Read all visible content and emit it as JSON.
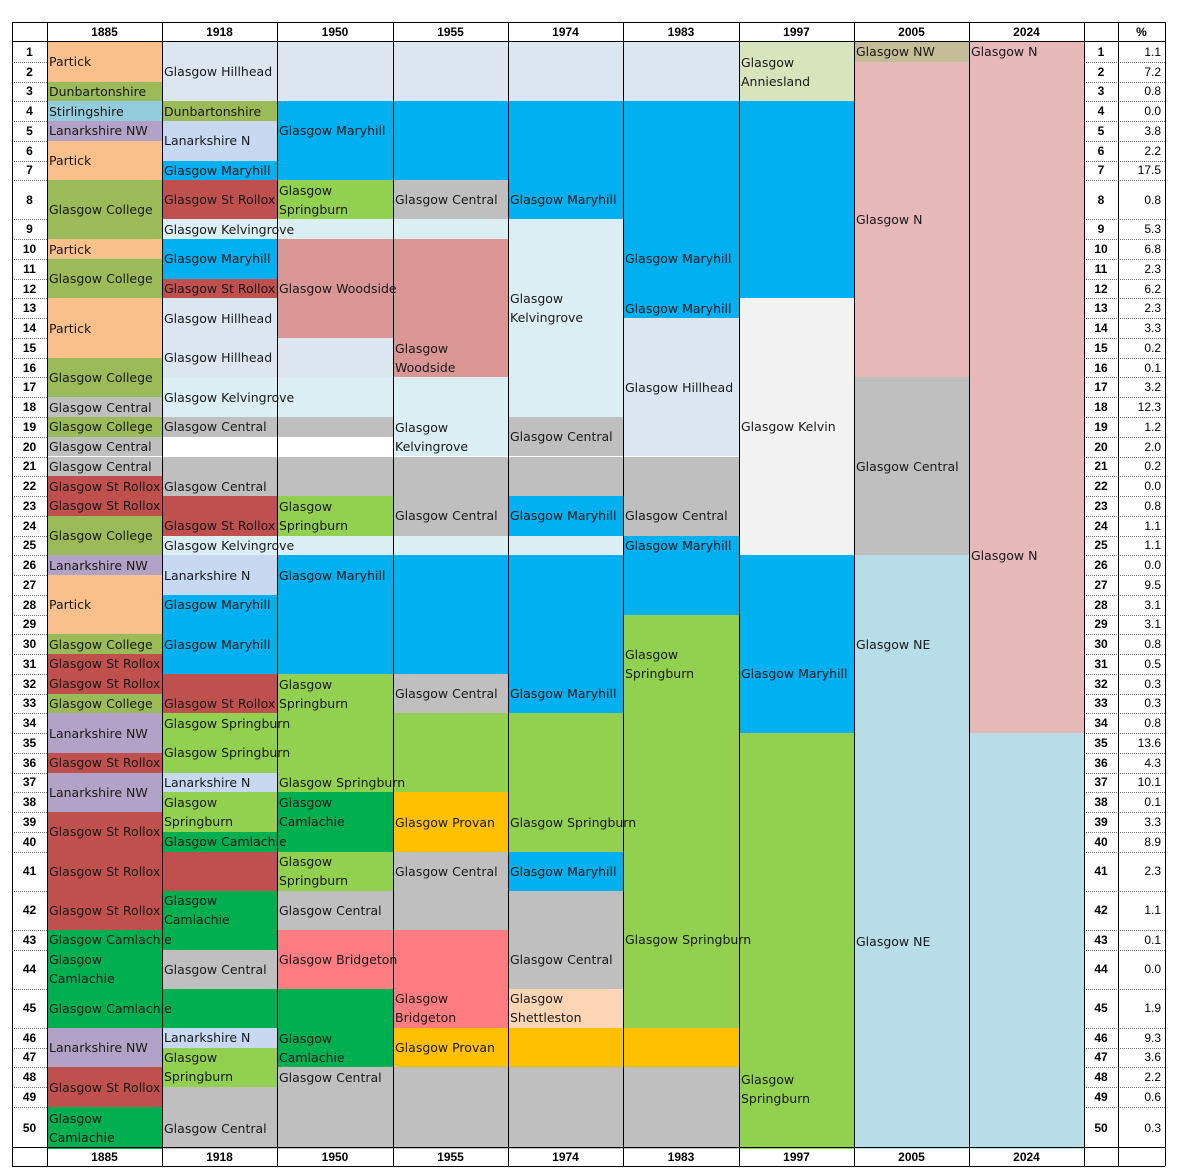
{
  "years": [
    "1885",
    "1918",
    "1950",
    "1955",
    "1974",
    "1983",
    "1997",
    "2005",
    "2024"
  ],
  "pct_header": "%",
  "rows": [
    {
      "n": "1",
      "pct": "1.1"
    },
    {
      "n": "2",
      "pct": "7.2"
    },
    {
      "n": "3",
      "pct": "0.8"
    },
    {
      "n": "4",
      "pct": "0.0"
    },
    {
      "n": "5",
      "pct": "3.8"
    },
    {
      "n": "6",
      "pct": "2.2"
    },
    {
      "n": "7",
      "pct": "17.5"
    },
    {
      "n": "8",
      "pct": "0.8"
    },
    {
      "n": "9",
      "pct": "5.3"
    },
    {
      "n": "10",
      "pct": "6.8"
    },
    {
      "n": "11",
      "pct": "2.3"
    },
    {
      "n": "12",
      "pct": "6.2"
    },
    {
      "n": "13",
      "pct": "2.3"
    },
    {
      "n": "14",
      "pct": "3.3"
    },
    {
      "n": "15",
      "pct": "0.2"
    },
    {
      "n": "16",
      "pct": "0.1"
    },
    {
      "n": "17",
      "pct": "3.2"
    },
    {
      "n": "18",
      "pct": "12.3"
    },
    {
      "n": "19",
      "pct": "1.2"
    },
    {
      "n": "20",
      "pct": "2.0"
    },
    {
      "n": "21",
      "pct": "0.2"
    },
    {
      "n": "22",
      "pct": "0.0"
    },
    {
      "n": "23",
      "pct": "0.8"
    },
    {
      "n": "24",
      "pct": "1.1"
    },
    {
      "n": "25",
      "pct": "1.1"
    },
    {
      "n": "26",
      "pct": "0.0"
    },
    {
      "n": "27",
      "pct": "9.5"
    },
    {
      "n": "28",
      "pct": "3.1"
    },
    {
      "n": "29",
      "pct": "3.1"
    },
    {
      "n": "30",
      "pct": "0.8"
    },
    {
      "n": "31",
      "pct": "0.5"
    },
    {
      "n": "32",
      "pct": "0.3"
    },
    {
      "n": "33",
      "pct": "0.3"
    },
    {
      "n": "34",
      "pct": "0.8"
    },
    {
      "n": "35",
      "pct": "13.6"
    },
    {
      "n": "36",
      "pct": "4.3"
    },
    {
      "n": "37",
      "pct": "10.1"
    },
    {
      "n": "38",
      "pct": "0.1"
    },
    {
      "n": "39",
      "pct": "3.3"
    },
    {
      "n": "40",
      "pct": "8.9"
    },
    {
      "n": "41",
      "pct": "2.3"
    },
    {
      "n": "42",
      "pct": "1.1"
    },
    {
      "n": "43",
      "pct": "0.1"
    },
    {
      "n": "44",
      "pct": "0.0"
    },
    {
      "n": "45",
      "pct": "1.9"
    },
    {
      "n": "46",
      "pct": "9.3"
    },
    {
      "n": "47",
      "pct": "3.6"
    },
    {
      "n": "48",
      "pct": "2.2"
    },
    {
      "n": "49",
      "pct": "0.6"
    },
    {
      "n": "50",
      "pct": "0.3"
    }
  ],
  "colors": {
    "partick": "#f9c08c",
    "green_light": "#9bbb59",
    "stirling": "#93cddd",
    "lanark": "#b3a2c7",
    "lanark_n": "#c6d9f1",
    "hillhead": "#dce6f1",
    "kelvingrove": "#daeef3",
    "maryhill": "#00b0f0",
    "rollox": "#c0504d",
    "springburn": "#92d050",
    "central": "#bfbfbf",
    "woodside": "#da9694",
    "camlachie": "#00b050",
    "provan": "#ffc000",
    "bridgeton": "#ff7c80",
    "shettleston": "#fcd5b4",
    "kelvin": "#f2f2f2",
    "anniesland": "#d8e4bc",
    "nw2005": "#c4bd97",
    "glasgow_n": "#e6b8b7",
    "glasgow_ne": "#b7dde8"
  },
  "cells": [
    {
      "c1": 0,
      "c2": 1,
      "r1": 1,
      "r2": 2,
      "text": "Partick",
      "color": "partick"
    },
    {
      "c1": 0,
      "c2": 1,
      "r1": 3,
      "r2": 3,
      "text": "Dunbartonshire",
      "color": "green_light"
    },
    {
      "c1": 0,
      "c2": 1,
      "r1": 4,
      "r2": 4,
      "text": "Stirlingshire",
      "color": "stirling"
    },
    {
      "c1": 0,
      "c2": 1,
      "r1": 5,
      "r2": 5,
      "text": "Lanarkshire NW",
      "color": "lanark"
    },
    {
      "c1": 0,
      "c2": 1,
      "r1": 6,
      "r2": 7,
      "text": "Partick",
      "color": "partick"
    },
    {
      "c1": 0,
      "c2": 1,
      "r1": 8,
      "r2": 9,
      "text": "Glasgow College",
      "color": "green_light"
    },
    {
      "c1": 0,
      "c2": 1,
      "r1": 10,
      "r2": 10,
      "text": "Partick",
      "color": "partick"
    },
    {
      "c1": 0,
      "c2": 1,
      "r1": 11,
      "r2": 12,
      "text": "Glasgow College",
      "color": "green_light"
    },
    {
      "c1": 0,
      "c2": 1,
      "r1": 13,
      "r2": 15,
      "text": "Partick",
      "color": "partick"
    },
    {
      "c1": 0,
      "c2": 1,
      "r1": 16,
      "r2": 17,
      "text": "Glasgow College",
      "color": "green_light"
    },
    {
      "c1": 0,
      "c2": 1,
      "r1": 18,
      "r2": 18,
      "text": "Glasgow Central",
      "color": "central"
    },
    {
      "c1": 0,
      "c2": 1,
      "r1": 19,
      "r2": 19,
      "text": "Glasgow College",
      "color": "green_light"
    },
    {
      "c1": 0,
      "c2": 1,
      "r1": 20,
      "r2": 20,
      "text": "Glasgow Central",
      "color": "central"
    },
    {
      "c1": 0,
      "c2": 1,
      "r1": 22,
      "r2": 22,
      "text": "Glasgow St Rollox",
      "color": "rollox"
    },
    {
      "c1": 0,
      "c2": 1,
      "r1": 24,
      "r2": 25,
      "text": "Glasgow College",
      "color": "green_light"
    },
    {
      "c1": 0,
      "c2": 1,
      "r1": 26,
      "r2": 26,
      "text": "Lanarkshire NW",
      "color": "lanark"
    },
    {
      "c1": 0,
      "c2": 1,
      "r1": 27,
      "r2": 29,
      "text": "Partick",
      "color": "partick"
    },
    {
      "c1": 0,
      "c2": 1,
      "r1": 30,
      "r2": 30,
      "text": "Glasgow College",
      "color": "green_light"
    },
    {
      "c1": 0,
      "c2": 1,
      "r1": 31,
      "r2": 31,
      "text": "Glasgow St Rollox",
      "color": "rollox"
    },
    {
      "c1": 0,
      "c2": 1,
      "r1": 33,
      "r2": 33,
      "text": "Glasgow College",
      "color": "green_light"
    },
    {
      "c1": 0,
      "c2": 1,
      "r1": 34,
      "r2": 35,
      "text": "Lanarkshire NW",
      "color": "lanark"
    },
    {
      "c1": 0,
      "c2": 1,
      "r1": 36,
      "r2": 36,
      "text": "Glasgow St Rollox",
      "color": "rollox"
    },
    {
      "c1": 0,
      "c2": 1,
      "r1": 37,
      "r2": 38,
      "text": "Lanarkshire NW",
      "color": "lanark"
    },
    {
      "c1": 0,
      "c2": 1,
      "r1": 39,
      "r2": 40,
      "text": "Glasgow St Rollox",
      "color": "rollox"
    },
    {
      "c1": 0,
      "c2": 1,
      "r1": 42,
      "r2": 42,
      "text": "Glasgow St Rollox",
      "color": "rollox"
    },
    {
      "c1": 0,
      "c2": 1,
      "r1": 44,
      "r2": 44,
      "text": "Glasgow\nCamlachie",
      "color": "camlachie"
    },
    {
      "c1": 0,
      "c2": 1,
      "r1": 46,
      "r2": 47,
      "text": "Lanarkshire NW",
      "color": "lanark"
    },
    {
      "c1": 0,
      "c2": 1,
      "r1": 48,
      "r2": 49,
      "text": "Glasgow St Rollox",
      "color": "rollox"
    },
    {
      "c1": 0,
      "c2": 1,
      "r1": 50,
      "r2": 50,
      "text": "Glasgow\nCamlachie",
      "color": "camlachie"
    },
    {
      "c1": 0,
      "c2": 6,
      "r1": 21,
      "r2": 21,
      "text": "Glasgow Central",
      "color": "central"
    },
    {
      "c1": 0,
      "c2": 2,
      "r1": 23,
      "r2": 23,
      "text": "Glasgow St Rollox",
      "color": "rollox"
    },
    {
      "c1": 0,
      "c2": 2,
      "r1": 32,
      "r2": 32,
      "text": "Glasgow St Rollox",
      "color": "rollox"
    },
    {
      "c1": 0,
      "c2": 3,
      "r1": 41,
      "r2": 41,
      "text": "Glasgow St Rollox",
      "color": "rollox"
    },
    {
      "c1": 0,
      "c2": 2,
      "r1": 43,
      "r2": 43,
      "text": "Glasgow Camlachie",
      "color": "camlachie"
    },
    {
      "c1": 0,
      "c2": 3,
      "r1": 45,
      "r2": 45,
      "text": "Glasgow Camlachie",
      "color": "camlachie"
    },
    {
      "c1": 1,
      "c2": 6,
      "r1": 1,
      "r2": 3,
      "text": "Glasgow Hillhead",
      "color": "hillhead"
    },
    {
      "c1": 1,
      "c2": 2,
      "r1": 4,
      "r2": 4,
      "text": "Dunbartonshire",
      "color": "green_light"
    },
    {
      "c1": 1,
      "c2": 2,
      "r1": 5,
      "r2": 6,
      "text": "Lanarkshire N",
      "color": "lanark_n"
    },
    {
      "c1": 1,
      "c2": 7,
      "r1": 7,
      "r2": 7,
      "text": "Glasgow Maryhill",
      "color": "maryhill"
    },
    {
      "c1": 1,
      "c2": 2,
      "r1": 8,
      "r2": 8,
      "text": "Glasgow St Rollox",
      "color": "rollox"
    },
    {
      "c1": 1,
      "c2": 5,
      "r1": 9,
      "r2": 9,
      "text": "Glasgow Kelvingrove",
      "color": "kelvingrove"
    },
    {
      "c1": 1,
      "c2": 2,
      "r1": 10,
      "r2": 11,
      "text": "Glasgow Maryhill",
      "color": "maryhill"
    },
    {
      "c1": 1,
      "c2": 2,
      "r1": 12,
      "r2": 12,
      "text": "Glasgow St Rollox",
      "color": "rollox"
    },
    {
      "c1": 1,
      "c2": 2,
      "r1": 13,
      "r2": 14,
      "text": "Glasgow Hillhead",
      "color": "hillhead"
    },
    {
      "c1": 1,
      "c2": 3,
      "r1": 15,
      "r2": 16,
      "text": "Glasgow Hillhead",
      "color": "hillhead"
    },
    {
      "c1": 1,
      "c2": 5,
      "r1": 17,
      "r2": 18,
      "text": "Glasgow Kelvingrove",
      "color": "kelvingrove"
    },
    {
      "c1": 1,
      "c2": 3,
      "r1": 19,
      "r2": 19,
      "text": "Glasgow Central",
      "color": "central"
    },
    {
      "c1": 1,
      "c2": 6,
      "r1": 22,
      "r2": 22,
      "text": "Glasgow Central",
      "color": "central"
    },
    {
      "c1": 1,
      "c2": 2,
      "r1": 24,
      "r2": 24,
      "text": "Glasgow St Rollox",
      "color": "rollox"
    },
    {
      "c1": 1,
      "c2": 5,
      "r1": 25,
      "r2": 25,
      "text": "Glasgow Kelvingrove",
      "color": "kelvingrove"
    },
    {
      "c1": 1,
      "c2": 2,
      "r1": 26,
      "r2": 27,
      "text": "Lanarkshire N",
      "color": "lanark_n"
    },
    {
      "c1": 1,
      "c2": 7,
      "r1": 28,
      "r2": 28,
      "text": "Glasgow Maryhill",
      "color": "maryhill"
    },
    {
      "c1": 1,
      "c2": 5,
      "r1": 29,
      "r2": 31,
      "text": "Glasgow Maryhill",
      "color": "maryhill"
    },
    {
      "c1": 1,
      "c2": 2,
      "r1": 33,
      "r2": 33,
      "text": "Glasgow St Rollox",
      "color": "rollox"
    },
    {
      "c1": 1,
      "c2": 6,
      "r1": 34,
      "r2": 34,
      "text": "Glasgow Springburn",
      "color": "springburn"
    },
    {
      "c1": 1,
      "c2": 7,
      "r1": 35,
      "r2": 36,
      "text": "Glasgow Springburn",
      "color": "springburn"
    },
    {
      "c1": 1,
      "c2": 2,
      "r1": 37,
      "r2": 37,
      "text": "Lanarkshire N",
      "color": "lanark_n"
    },
    {
      "c1": 1,
      "c2": 2,
      "r1": 38,
      "r2": 39,
      "text": "Glasgow\nSpringburn",
      "color": "springburn"
    },
    {
      "c1": 1,
      "c2": 3,
      "r1": 40,
      "r2": 40,
      "text": "Glasgow Camlachie",
      "color": "camlachie"
    },
    {
      "c1": 1,
      "c2": 2,
      "r1": 42,
      "r2": 42,
      "text": "Glasgow\nCamlachie",
      "color": "camlachie"
    },
    {
      "c1": 1,
      "c2": 2,
      "r1": 44,
      "r2": 44,
      "text": "Glasgow Central",
      "color": "central"
    },
    {
      "c1": 1,
      "c2": 2,
      "r1": 46,
      "r2": 46,
      "text": "Lanarkshire N",
      "color": "lanark_n"
    },
    {
      "c1": 1,
      "c2": 2,
      "r1": 47,
      "r2": 48,
      "text": "Glasgow\nSpringburn",
      "color": "springburn"
    },
    {
      "c1": 1,
      "c2": 6,
      "r1": 50,
      "r2": 50,
      "text": "Glasgow Central",
      "color": "central"
    },
    {
      "c1": 1,
      "c2": 6,
      "r1": 49,
      "r2": 49,
      "text": "",
      "color": "central"
    },
    {
      "c1": 2,
      "c2": 7,
      "r1": 4,
      "r2": 6,
      "text": "Glasgow Maryhill",
      "color": "maryhill"
    },
    {
      "c1": 2,
      "c2": 3,
      "r1": 8,
      "r2": 8,
      "text": "Glasgow\nSpringburn",
      "color": "springburn"
    },
    {
      "c1": 2,
      "c2": 4,
      "r1": 10,
      "r2": 14,
      "text": "Glasgow Woodside",
      "color": "woodside"
    },
    {
      "c1": 2,
      "c2": 2,
      "r1": 0,
      "r2": 0,
      "text": "",
      "color": "central"
    },
    {
      "c1": 2,
      "c2": 3,
      "r1": 23,
      "r2": 24,
      "text": "Glasgow\nSpringburn",
      "color": "springburn"
    },
    {
      "c1": 2,
      "c2": 7,
      "r1": 26,
      "r2": 27,
      "text": "Glasgow Maryhill",
      "color": "maryhill"
    },
    {
      "c1": 2,
      "c2": 3,
      "r1": 32,
      "r2": 33,
      "text": "Glasgow\nSpringburn",
      "color": "springburn"
    },
    {
      "c1": 2,
      "c2": 7,
      "r1": 37,
      "r2": 37,
      "text": "Glasgow Springburn",
      "color": "springburn"
    },
    {
      "c1": 2,
      "c2": 3,
      "r1": 38,
      "r2": 39,
      "text": "Glasgow\nCamlachie",
      "color": "camlachie"
    },
    {
      "c1": 2,
      "c2": 3,
      "r1": 41,
      "r2": 41,
      "text": "Glasgow\nSpringburn",
      "color": "springburn"
    },
    {
      "c1": 2,
      "c2": 5,
      "r1": 42,
      "r2": 42,
      "text": "Glasgow Central",
      "color": "central"
    },
    {
      "c1": 2,
      "c2": 4,
      "r1": 43,
      "r2": 44,
      "text": "Glasgow Bridgeton",
      "color": "bridgeton"
    },
    {
      "c1": 2,
      "c2": 3,
      "r1": 46,
      "r2": 47,
      "text": "Glasgow\nCamlachie",
      "color": "camlachie"
    },
    {
      "c1": 2,
      "c2": 6,
      "r1": 48,
      "r2": 48,
      "text": "Glasgow Central",
      "color": "central"
    },
    {
      "c1": 3,
      "c2": 4,
      "r1": 8,
      "r2": 8,
      "text": "Glasgow Central",
      "color": "central"
    },
    {
      "c1": 3,
      "c2": 4,
      "r1": 15,
      "r2": 16,
      "text": "Glasgow\nWoodside",
      "color": "woodside"
    },
    {
      "c1": 3,
      "c2": 4,
      "r1": 19,
      "r2": 20,
      "text": "Glasgow\nKelvingrove",
      "color": "kelvingrove"
    },
    {
      "c1": 3,
      "c2": 4,
      "r1": 23,
      "r2": 24,
      "text": "Glasgow Central",
      "color": "central"
    },
    {
      "c1": 3,
      "c2": 4,
      "r1": 32,
      "r2": 33,
      "text": "Glasgow Central",
      "color": "central"
    },
    {
      "c1": 3,
      "c2": 4,
      "r1": 38,
      "r2": 40,
      "text": "Glasgow Provan",
      "color": "provan"
    },
    {
      "c1": 3,
      "c2": 4,
      "r1": 41,
      "r2": 41,
      "text": "Glasgow Central",
      "color": "central"
    },
    {
      "c1": 3,
      "c2": 4,
      "r1": 45,
      "r2": 45,
      "text": "Glasgow\nBridgeton",
      "color": "bridgeton"
    },
    {
      "c1": 3,
      "c2": 6,
      "r1": 46,
      "r2": 47,
      "text": "Glasgow Provan",
      "color": "provan"
    },
    {
      "c1": 4,
      "c2": 7,
      "r1": 8,
      "r2": 8,
      "text": "Glasgow Maryhill",
      "color": "maryhill"
    },
    {
      "c1": 4,
      "c2": 5,
      "r1": 10,
      "r2": 16,
      "text": "Glasgow\nKelvingrove",
      "color": "kelvingrove"
    },
    {
      "c1": 4,
      "c2": 5,
      "r1": 19,
      "r2": 20,
      "text": "Glasgow Central",
      "color": "central"
    },
    {
      "c1": 4,
      "c2": 5,
      "r1": 23,
      "r2": 24,
      "text": "Glasgow Maryhill",
      "color": "maryhill"
    },
    {
      "c1": 4,
      "c2": 5,
      "r1": 32,
      "r2": 33,
      "text": "Glasgow Maryhill",
      "color": "maryhill"
    },
    {
      "c1": 4,
      "c2": 7,
      "r1": 38,
      "r2": 40,
      "text": "Glasgow Springburn",
      "color": "springburn"
    },
    {
      "c1": 4,
      "c2": 5,
      "r1": 41,
      "r2": 41,
      "text": "Glasgow Maryhill",
      "color": "maryhill"
    },
    {
      "c1": 4,
      "c2": 5,
      "r1": 43,
      "r2": 44,
      "text": "Glasgow Central",
      "color": "central"
    },
    {
      "c1": 4,
      "c2": 5,
      "r1": 45,
      "r2": 45,
      "text": "Glasgow\nShettleston",
      "color": "shettleston"
    },
    {
      "c1": 5,
      "c2": 7,
      "r1": 9,
      "r2": 12,
      "text": "Glasgow Maryhill",
      "color": "maryhill"
    },
    {
      "c1": 5,
      "c2": 6,
      "r1": 13,
      "r2": 13,
      "text": "Glasgow Maryhill",
      "color": "maryhill"
    },
    {
      "c1": 5,
      "c2": 6,
      "r1": 14,
      "r2": 20,
      "text": "Glasgow Hillhead",
      "color": "hillhead"
    },
    {
      "c1": 5,
      "c2": 6,
      "r1": 23,
      "r2": 24,
      "text": "Glasgow Central",
      "color": "central"
    },
    {
      "c1": 5,
      "c2": 6,
      "r1": 25,
      "r2": 25,
      "text": "Glasgow Maryhill",
      "color": "maryhill"
    },
    {
      "c1": 5,
      "c2": 6,
      "r1": 29,
      "r2": 33,
      "text": "Glasgow\nSpringburn",
      "color": "springburn"
    },
    {
      "c1": 5,
      "c2": 7,
      "r1": 41,
      "r2": 45,
      "text": "Glasgow Springburn",
      "color": "springburn"
    },
    {
      "c1": 6,
      "c2": 7,
      "r1": 1,
      "r2": 3,
      "text": "Glasgow\nAnniesland",
      "color": "anniesland"
    },
    {
      "c1": 6,
      "c2": 7,
      "r1": 13,
      "r2": 25,
      "text": "Glasgow Kelvin",
      "color": "kelvin"
    },
    {
      "c1": 6,
      "c2": 7,
      "r1": 29,
      "r2": 34,
      "text": "Glasgow Maryhill",
      "color": "maryhill"
    },
    {
      "c1": 6,
      "c2": 7,
      "r1": 46,
      "r2": 50,
      "text": "Glasgow\nSpringburn",
      "color": "springburn"
    },
    {
      "c1": 7,
      "c2": 8,
      "r1": 1,
      "r2": 1,
      "text": "Glasgow NW",
      "color": "nw2005"
    },
    {
      "c1": 7,
      "c2": 8,
      "r1": 2,
      "r2": 16,
      "text": "Glasgow N",
      "color": "glasgow_n"
    },
    {
      "c1": 7,
      "c2": 8,
      "r1": 17,
      "r2": 25,
      "text": "Glasgow Central",
      "color": "central"
    },
    {
      "c1": 7,
      "c2": 8,
      "r1": 26,
      "r2": 34,
      "text": "Glasgow NE",
      "color": "glasgow_ne"
    },
    {
      "c1": 7,
      "c2": 9,
      "r1": 35,
      "r2": 50,
      "text": "Glasgow NE",
      "color": "glasgow_ne"
    },
    {
      "c1": 8,
      "c2": 9,
      "r1": 1,
      "r2": 1,
      "text": "Glasgow N",
      "color": "glasgow_n"
    },
    {
      "c1": 8,
      "c2": 9,
      "r1": 2,
      "r2": 16,
      "text": "",
      "color": "glasgow_n"
    },
    {
      "c1": 8,
      "c2": 9,
      "r1": 17,
      "r2": 34,
      "text": "Glasgow N",
      "color": "glasgow_n"
    }
  ]
}
